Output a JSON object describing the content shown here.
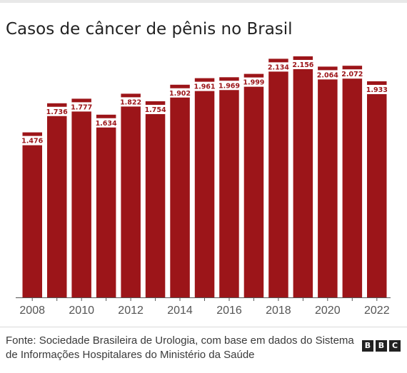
{
  "title": "Casos de câncer de pênis no Brasil",
  "source": "Fonte: Sociedade Brasileira de Urologia, com base em dados do Sistema de Informações Hospitalares do Ministério da Saúde",
  "logo": {
    "letters": [
      "B",
      "B",
      "C"
    ]
  },
  "colors": {
    "bar": "#9c1519",
    "axis": "#555555",
    "label_bg": "#ffffff",
    "label_text": "#9c1519"
  },
  "chart_data": {
    "type": "bar",
    "title": "Casos de câncer de pênis no Brasil",
    "categories": [
      "2008",
      "2009",
      "2010",
      "2011",
      "2012",
      "2013",
      "2014",
      "2015",
      "2016",
      "2017",
      "2018",
      "2019",
      "2020",
      "2021",
      "2022"
    ],
    "tick_labels": [
      "2008",
      "",
      "2010",
      "",
      "2012",
      "",
      "2014",
      "",
      "2016",
      "",
      "2018",
      "",
      "2020",
      "",
      "2022"
    ],
    "values": [
      1476,
      1736,
      1777,
      1634,
      1822,
      1754,
      1902,
      1961,
      1969,
      1999,
      2134,
      2156,
      2064,
      2072,
      1933
    ],
    "data_labels": [
      "1.476",
      "1.736",
      "1.777",
      "1.634",
      "1.822",
      "1.754",
      "1.902",
      "1.961",
      "1.969",
      "1.999",
      "2.134",
      "2.156",
      "2.064",
      "2.072",
      "1.933"
    ],
    "ylim": [
      0,
      2156
    ],
    "grid": false,
    "xlabel": "",
    "ylabel": ""
  }
}
